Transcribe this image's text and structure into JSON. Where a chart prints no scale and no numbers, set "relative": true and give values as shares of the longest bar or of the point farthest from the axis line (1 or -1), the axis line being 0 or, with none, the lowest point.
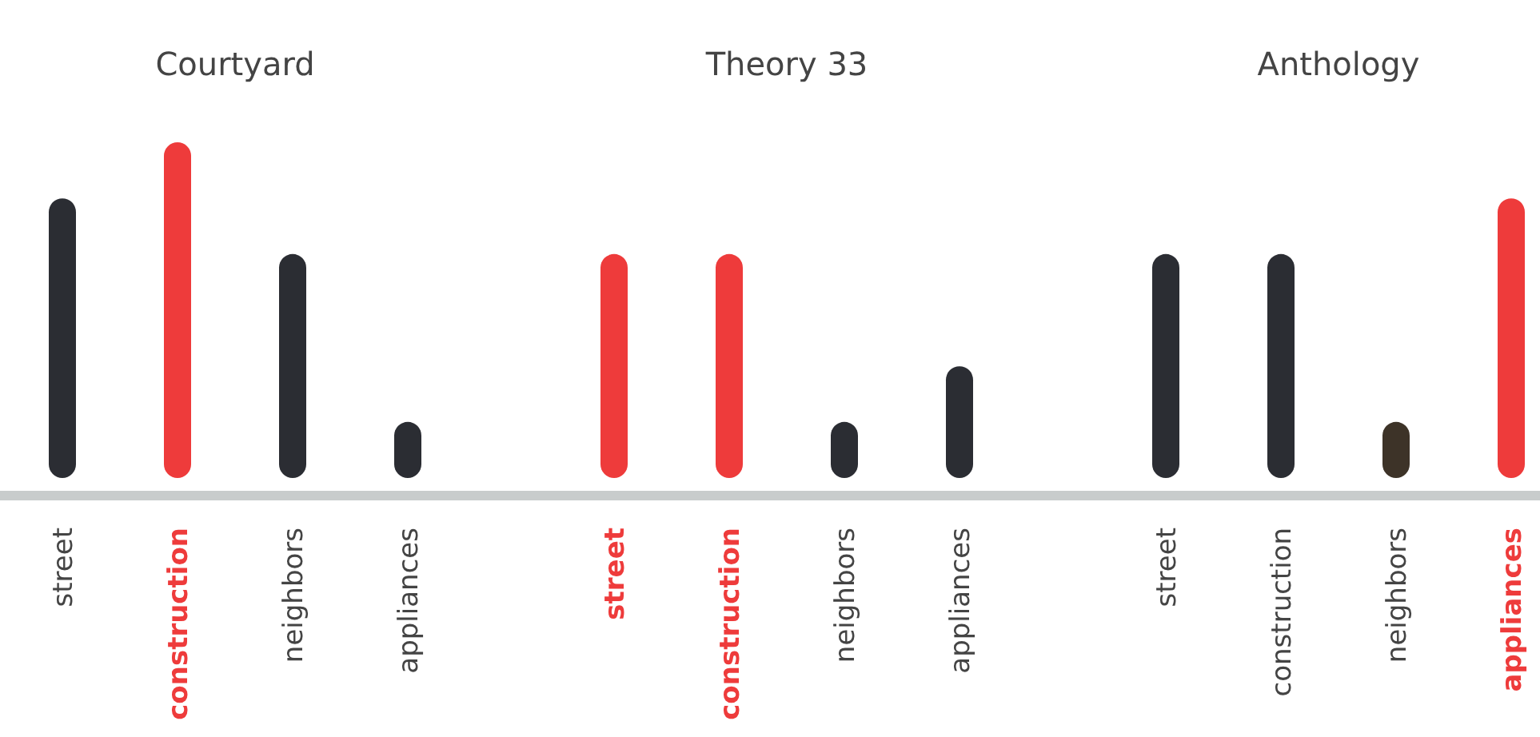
{
  "chart_data": {
    "type": "bar",
    "relative": true,
    "categories": [
      "street",
      "construction",
      "neighbors",
      "appliances",
      "street",
      "construction",
      "neighbors",
      "appliances",
      "street",
      "construction",
      "neighbors",
      "appliances"
    ],
    "values": [
      0.833,
      1,
      0.667,
      0.167,
      0.667,
      0.667,
      0.167,
      0.333,
      0.667,
      0.667,
      0.167,
      0.833
    ],
    "colors": [
      "#2b2d33",
      "#ee3b3b",
      "#2b2d33",
      "#2b2d33",
      "#ee3b3b",
      "#ee3b3b",
      "#2b2d33",
      "#2b2d33",
      "#2b2d33",
      "#2b2d33",
      "#3d3328",
      "#ee3b3b"
    ],
    "annotations": [
      "Courtyard",
      "Theory 33",
      "Anthology"
    ]
  }
}
